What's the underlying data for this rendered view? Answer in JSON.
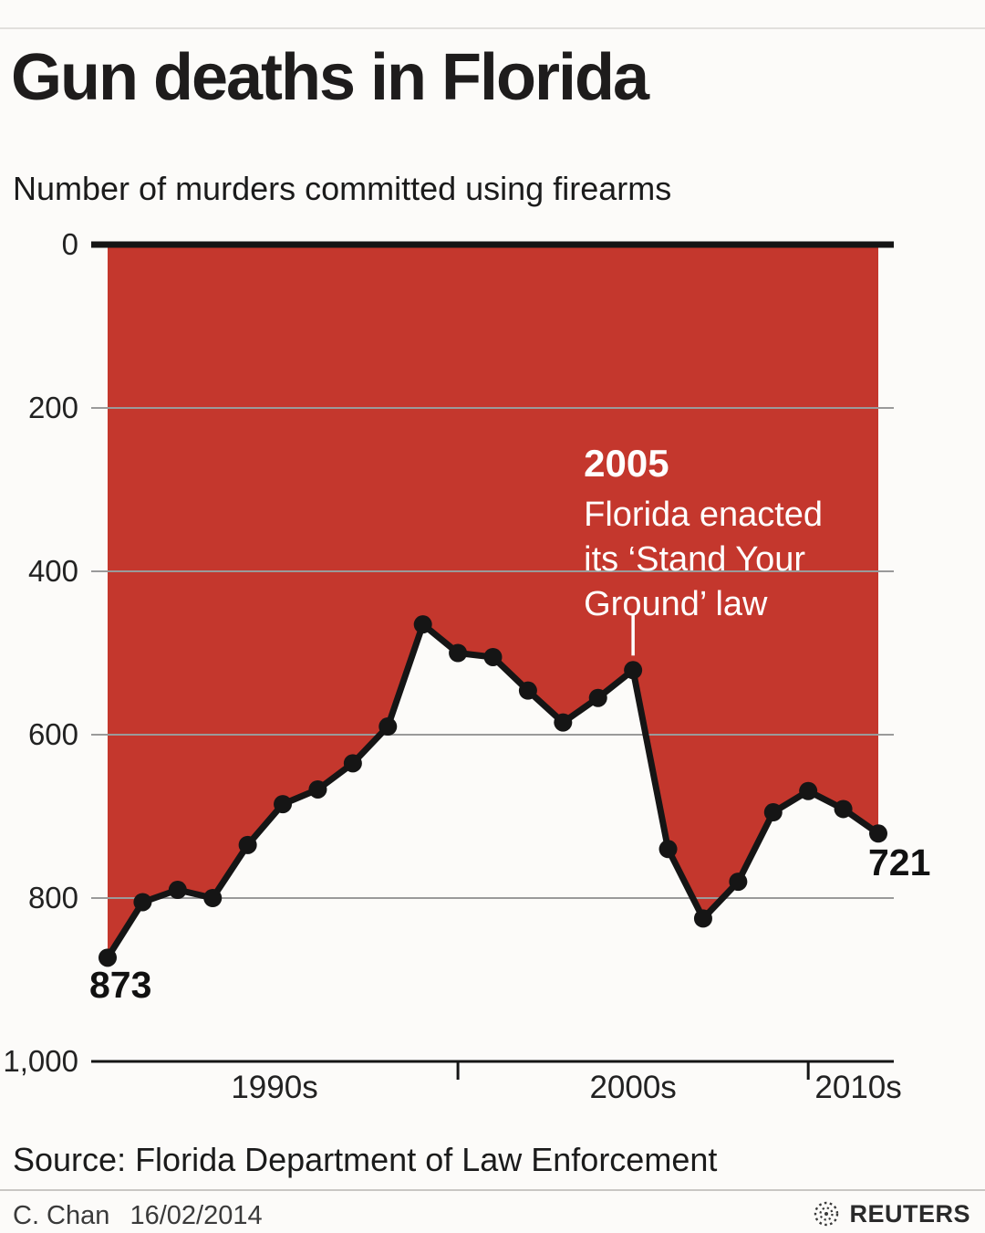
{
  "header": {
    "title": "Gun deaths in Florida",
    "subtitle": "Number of murders committed using firearms"
  },
  "chart_data": {
    "type": "area",
    "title": "Gun deaths in Florida",
    "subtitle": "Number of murders committed using firearms",
    "x": [
      1990,
      1991,
      1992,
      1993,
      1994,
      1995,
      1996,
      1997,
      1998,
      1999,
      2000,
      2001,
      2002,
      2003,
      2004,
      2005,
      2006,
      2007,
      2008,
      2009,
      2010,
      2011,
      2012
    ],
    "values": [
      873,
      805,
      790,
      800,
      735,
      685,
      667,
      635,
      590,
      465,
      500,
      505,
      546,
      585,
      555,
      521,
      740,
      825,
      780,
      695,
      669,
      691,
      721
    ],
    "ylim": [
      0,
      1000
    ],
    "y_axis_inverted": true,
    "grid": true,
    "yticks": [
      0,
      200,
      400,
      600,
      800,
      1000
    ],
    "ytick_labels": [
      "0",
      "200",
      "400",
      "600",
      "800",
      "1,000"
    ],
    "xtick_labels": [
      "1990s",
      "2000s",
      "2010s"
    ],
    "decade_ticks": [
      2000,
      2010
    ],
    "first_point_label": "873",
    "last_point_label": "721",
    "annotation": {
      "title": "2005",
      "lines": [
        "Florida enacted",
        "its ‘Stand Your",
        "Ground’ law"
      ],
      "target_year": 2005,
      "target_value": 521
    },
    "colors": {
      "area": "#C4372D",
      "line": "#151515",
      "axis": "#151515",
      "grid": "#9A9A9A",
      "annotation": "#FFFFFF",
      "background": "#FCFBF9"
    }
  },
  "footer": {
    "source": "Source: Florida Department of Law Enforcement",
    "credit": "C. Chan",
    "date": "16/02/2014",
    "logo_text": "REUTERS"
  }
}
